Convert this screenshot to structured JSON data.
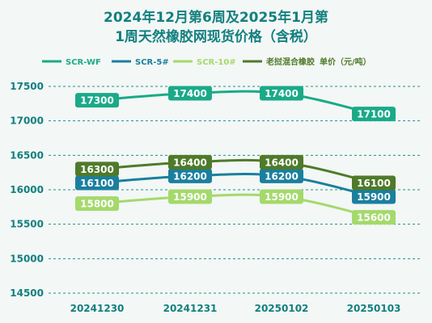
{
  "chart_data": {
    "type": "line",
    "title_line1": "2024年12月第6周及2025年1月第",
    "title_line2": "1周天然橡胶网现货价格（含税）",
    "unit_label": "单价（元/吨）",
    "categories": [
      "20241230",
      "20241231",
      "20250102",
      "20250103"
    ],
    "ylim": [
      14500,
      17500
    ],
    "yticks": [
      14500,
      15000,
      15500,
      16000,
      16500,
      17000,
      17500
    ],
    "grid": "horizontal dashed",
    "legend_position": "top",
    "series": [
      {
        "name": "SCR-WF",
        "values": [
          17300,
          17400,
          17400,
          17100
        ],
        "color": "#1aaa88"
      },
      {
        "name": "SCR-5#",
        "values": [
          16100,
          16200,
          16200,
          15900
        ],
        "color": "#1a7f9e"
      },
      {
        "name": "SCR-10#",
        "values": [
          15800,
          15900,
          15900,
          15600
        ],
        "color": "#a4d96c"
      },
      {
        "name": "老挝混合橡胶",
        "values": [
          16300,
          16400,
          16400,
          16100
        ],
        "color": "#4f7a2a"
      }
    ]
  }
}
